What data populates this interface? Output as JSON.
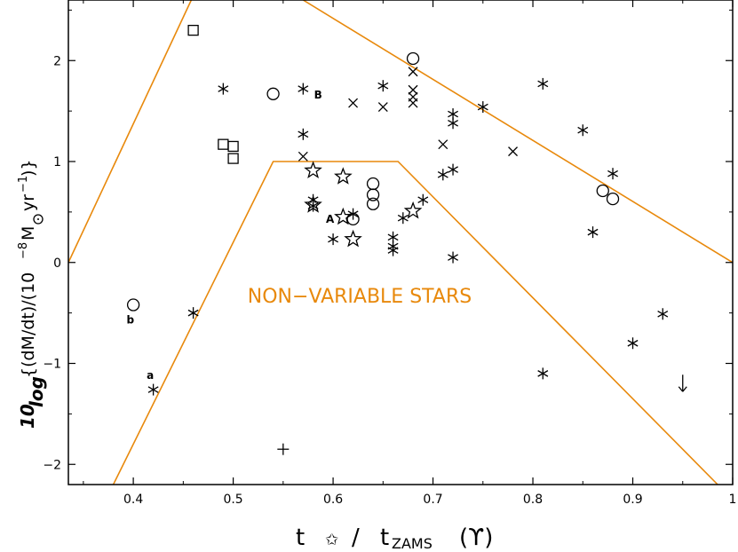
{
  "chart_data": {
    "type": "scatter",
    "title": "",
    "xlabel": "t_star / t_ZAMS (Υ)",
    "ylabel": "10 log {(dM/dt)/(10^-8 M_sun yr^-1)}",
    "xlim": [
      0.335,
      1.0
    ],
    "ylim": [
      -2.2,
      2.6
    ],
    "xticks": [
      0.4,
      0.5,
      0.6,
      0.7,
      0.8,
      0.9,
      1
    ],
    "xtick_labels": [
      "0.4",
      "0.5",
      "0.6",
      "0.7",
      "0.8",
      "0.9",
      "1"
    ],
    "yticks": [
      -2,
      -1,
      0,
      1,
      2
    ],
    "ytick_labels": [
      "−2",
      "−1",
      "0",
      "1",
      "2"
    ],
    "grid": false,
    "legend": "none",
    "region_label": "NON−VARIABLE STARS",
    "region_color": "#e8890c",
    "boundary_lines": [
      {
        "x": [
          0.335,
          0.458
        ],
        "y": [
          0.0,
          2.6
        ]
      },
      {
        "x": [
          0.38,
          0.54,
          0.665,
          0.985
        ],
        "y": [
          -2.2,
          1.0,
          1.0,
          -2.2
        ]
      },
      {
        "x": [
          0.57,
          1.0
        ],
        "y": [
          2.6,
          0.0
        ]
      }
    ],
    "series": [
      {
        "marker": "asterisk",
        "points": [
          [
            0.49,
            1.72
          ],
          [
            0.57,
            1.72
          ],
          [
            0.57,
            1.27
          ],
          [
            0.58,
            0.62
          ],
          [
            0.58,
            0.56
          ],
          [
            0.6,
            0.23
          ],
          [
            0.62,
            0.48
          ],
          [
            0.65,
            1.75
          ],
          [
            0.66,
            0.25
          ],
          [
            0.66,
            0.16
          ],
          [
            0.66,
            0.12
          ],
          [
            0.67,
            0.44
          ],
          [
            0.69,
            0.62
          ],
          [
            0.71,
            0.87
          ],
          [
            0.72,
            0.92
          ],
          [
            0.72,
            1.47
          ],
          [
            0.72,
            1.38
          ],
          [
            0.72,
            0.05
          ],
          [
            0.75,
            1.54
          ],
          [
            0.81,
            1.77
          ],
          [
            0.85,
            1.31
          ],
          [
            0.86,
            0.3
          ],
          [
            0.88,
            0.88
          ],
          [
            0.46,
            -0.5
          ],
          [
            0.42,
            -1.26
          ],
          [
            0.81,
            -1.1
          ],
          [
            0.9,
            -0.8
          ],
          [
            0.93,
            -0.51
          ]
        ]
      },
      {
        "marker": "cross",
        "points": [
          [
            0.57,
            1.05
          ],
          [
            0.62,
            1.58
          ],
          [
            0.65,
            1.54
          ],
          [
            0.68,
            1.89
          ],
          [
            0.68,
            1.71
          ],
          [
            0.68,
            1.64
          ],
          [
            0.68,
            1.58
          ],
          [
            0.71,
            1.17
          ],
          [
            0.78,
            1.1
          ]
        ]
      },
      {
        "marker": "circle",
        "points": [
          [
            0.54,
            1.67
          ],
          [
            0.62,
            0.43
          ],
          [
            0.64,
            0.78
          ],
          [
            0.64,
            0.67
          ],
          [
            0.64,
            0.58
          ],
          [
            0.68,
            2.02
          ],
          [
            0.87,
            0.71
          ],
          [
            0.88,
            0.63
          ],
          [
            0.4,
            -0.42
          ]
        ]
      },
      {
        "marker": "square",
        "points": [
          [
            0.46,
            2.3
          ],
          [
            0.49,
            1.17
          ],
          [
            0.5,
            1.15
          ],
          [
            0.5,
            1.03
          ]
        ]
      },
      {
        "marker": "star",
        "points": [
          [
            0.58,
            0.91
          ],
          [
            0.58,
            0.57
          ],
          [
            0.61,
            0.85
          ],
          [
            0.61,
            0.45
          ],
          [
            0.62,
            0.23
          ],
          [
            0.68,
            0.51
          ]
        ]
      },
      {
        "marker": "plus",
        "points": [
          [
            0.55,
            -1.85
          ]
        ]
      },
      {
        "marker": "down-arrow",
        "points": [
          [
            0.95,
            -1.2
          ]
        ]
      }
    ],
    "point_labels": [
      {
        "text": "B",
        "x": 0.585,
        "y": 1.66
      },
      {
        "text": "A",
        "x": 0.597,
        "y": 0.43
      },
      {
        "text": "b",
        "x": 0.397,
        "y": -0.57
      },
      {
        "text": "a",
        "x": 0.417,
        "y": -1.12
      }
    ]
  }
}
